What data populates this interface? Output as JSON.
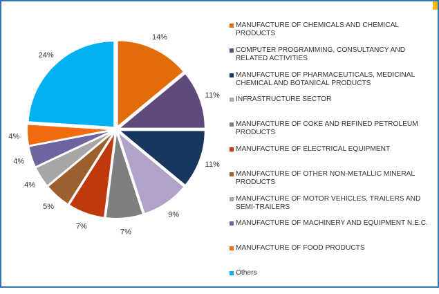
{
  "chart_data": {
    "type": "pie",
    "legend_position": "right",
    "series": [
      {
        "name": "MANUFACTURE OF CHEMICALS AND CHEMICAL PRODUCTS",
        "value": 14,
        "label": "14%",
        "color": "#e36c0a"
      },
      {
        "name": "COMPUTER PROGRAMMING, CONSULTANCY AND RELATED ACTIVITIES",
        "value": 11,
        "label": "11%",
        "color": "#604a7b"
      },
      {
        "name": "MANUFACTURE OF PHARMACEUTICALS, MEDICINAL CHEMICAL AND BOTANICAL PRODUCTS",
        "value": 11,
        "label": "11%",
        "color": "#17375e"
      },
      {
        "name": "INFRASTRUCTURE SECTOR",
        "value": 9,
        "label": "9%",
        "color": "#b3a2c7"
      },
      {
        "name": "MANUFACTURE OF COKE AND REFINED PETROLEUM PRODUCTS",
        "value": 7,
        "label": "7%",
        "color": "#7f7f7f"
      },
      {
        "name": "MANUFACTURE OF ELECTRICAL EQUIPMENT",
        "value": 7,
        "label": "7%",
        "color": "#c0380e"
      },
      {
        "name": "MANUFACTURE OF OTHER NON-METALLIC MINERAL PRODUCTS",
        "value": 5,
        "label": "5%",
        "color": "#9c5f2e"
      },
      {
        "name": "MANUFACTURE OF MOTOR VEHICLES, TRAILERS AND SEMI-TRAILERS",
        "value": 4,
        "label": "4%",
        "color": "#a6a6a6"
      },
      {
        "name": "MANUFACTURE OF MACHINERY AND EQUIPMENT N.E.C.",
        "value": 4,
        "label": "4%",
        "color": "#6d64a0"
      },
      {
        "name": "MANUFACTURE OF FOOD PRODUCTS",
        "value": 4,
        "label": "4%",
        "color": "#f26b0f"
      },
      {
        "name": "Others",
        "value": 24,
        "label": "24%",
        "color": "#00b0f0"
      }
    ]
  }
}
